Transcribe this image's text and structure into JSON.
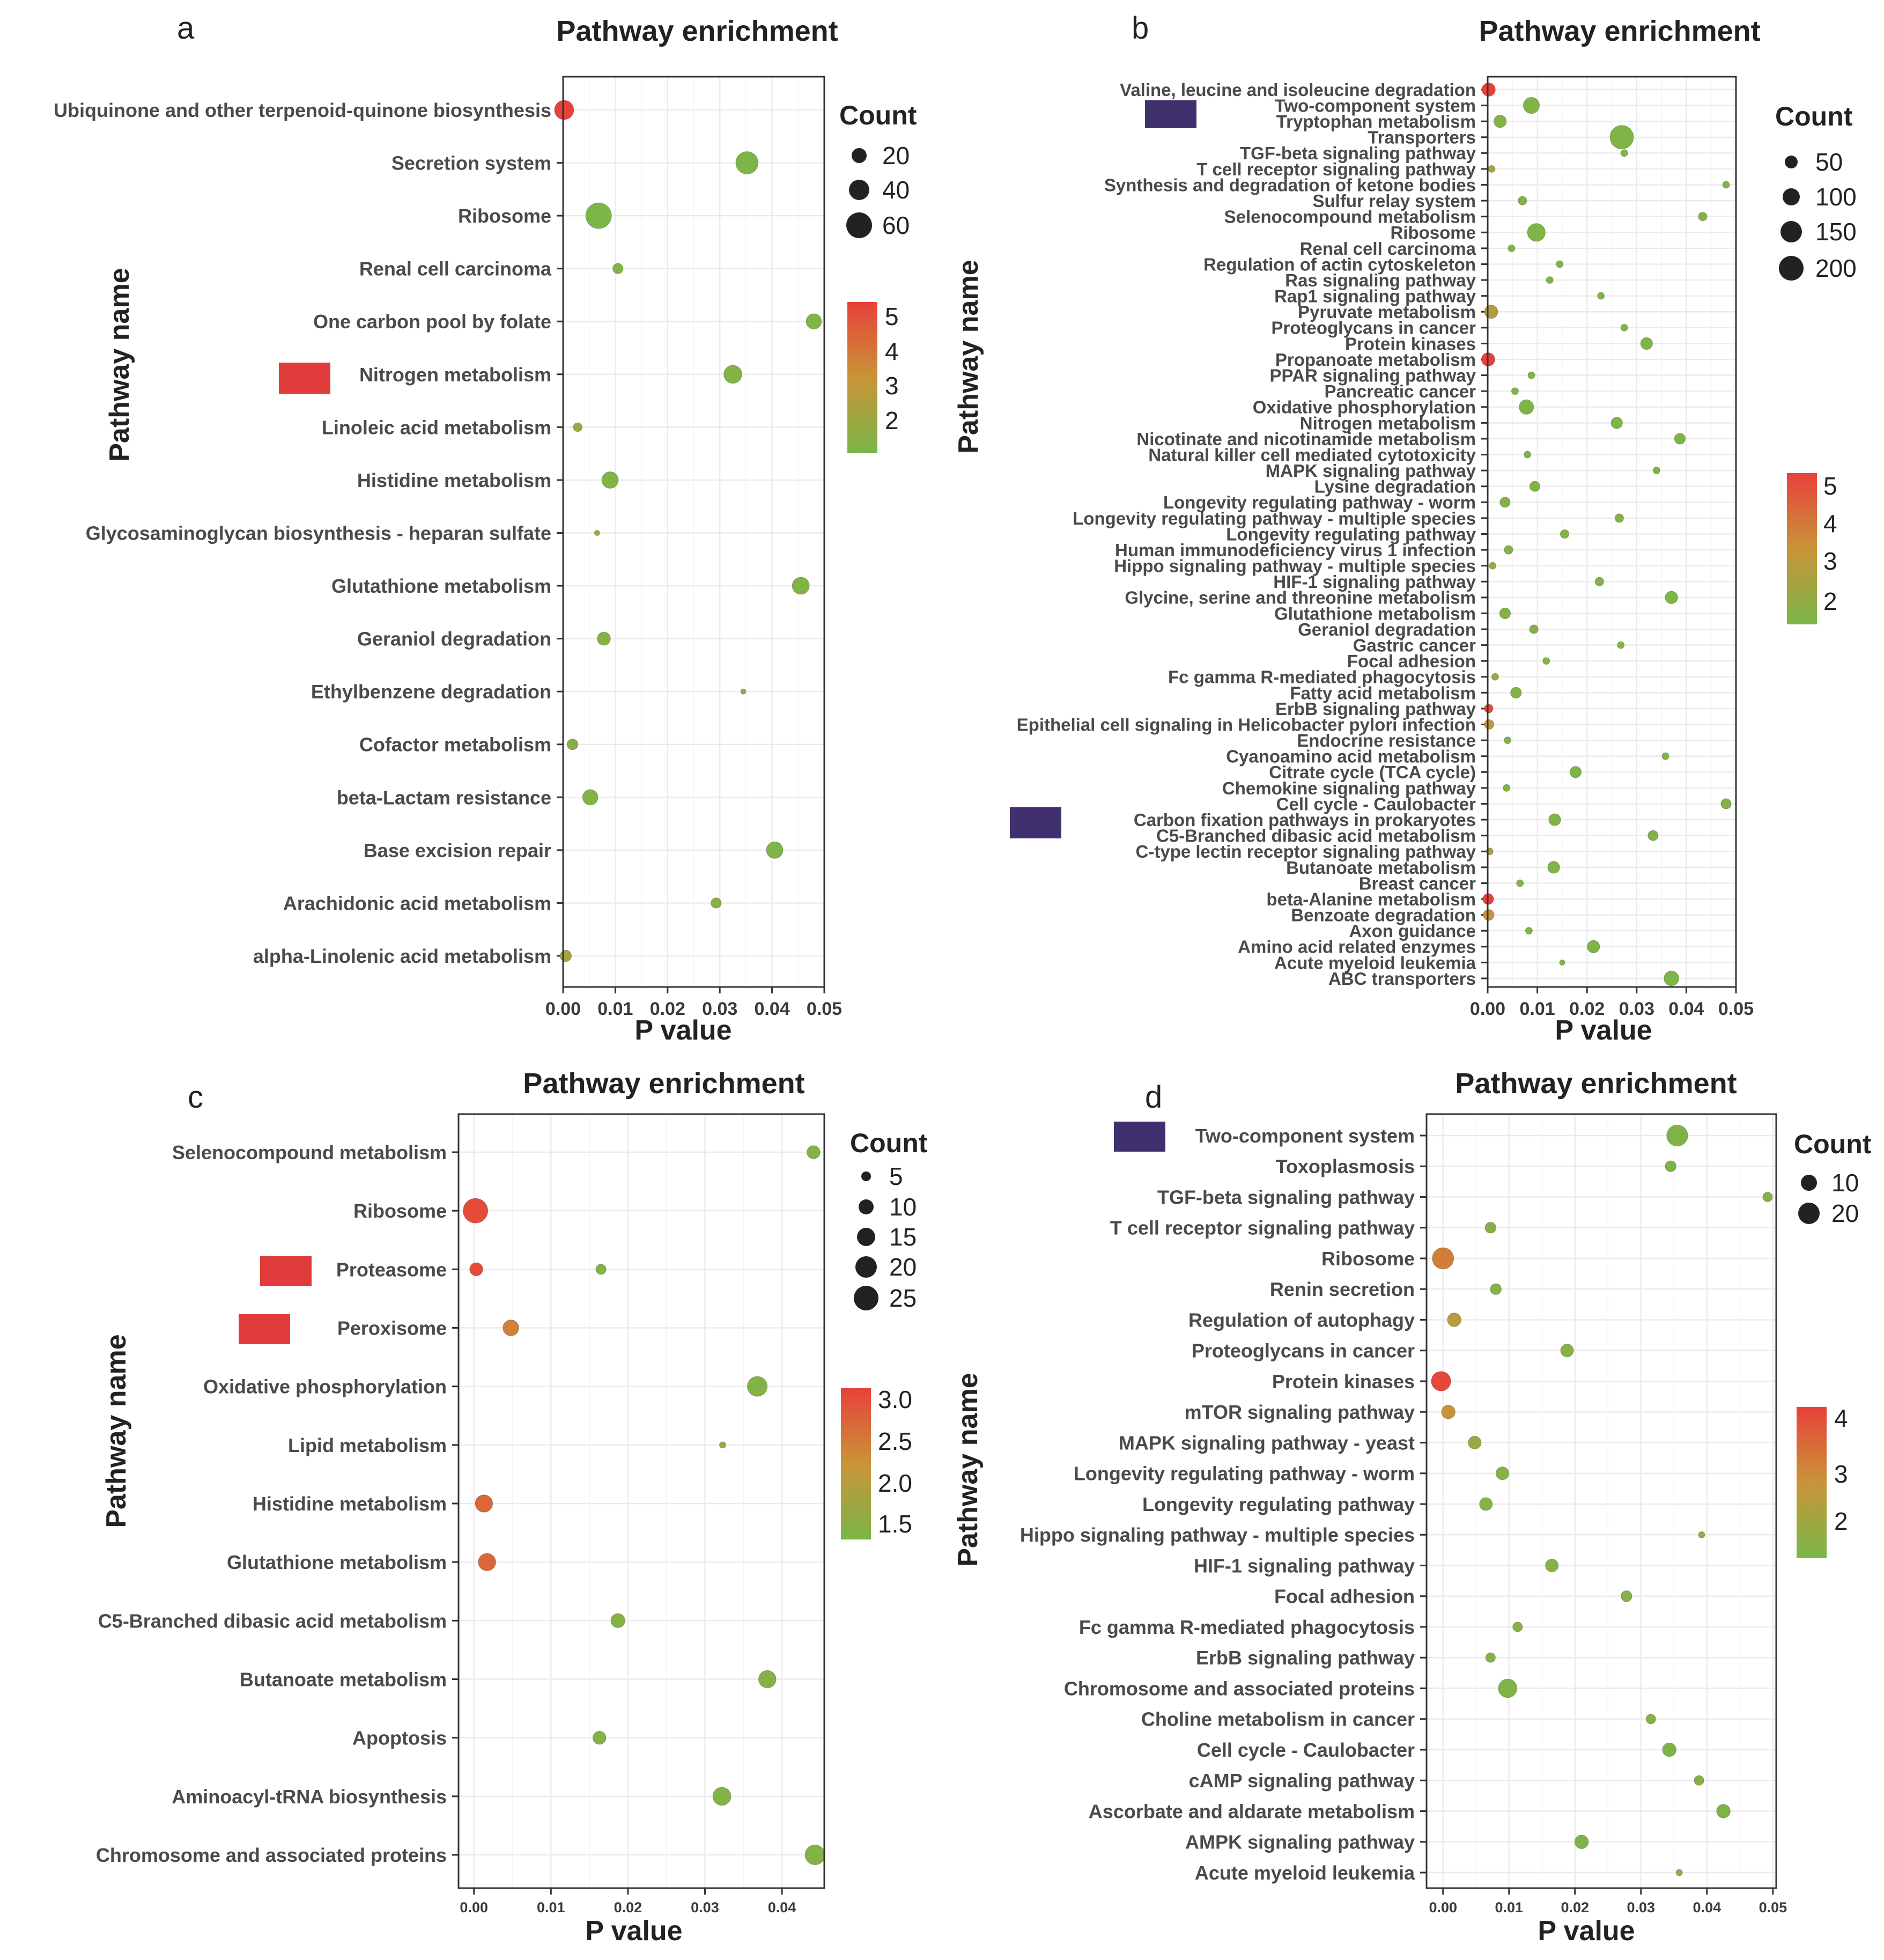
{
  "figure": {
    "panels": [
      {
        "letter": "a",
        "title": "Pathway enrichment",
        "ylabel": "Pathway name",
        "xlabel": "P value",
        "count_legend": {
          "title": "Count",
          "values": [
            20,
            40,
            60
          ]
        },
        "color_legend": {
          "ticks": [
            2,
            3,
            4,
            5
          ]
        }
      },
      {
        "letter": "b",
        "title": "Pathway enrichment",
        "ylabel": "Pathway name",
        "xlabel": "P value",
        "count_legend": {
          "title": "Count",
          "values": [
            50,
            100,
            150,
            200
          ]
        },
        "color_legend": {
          "ticks": [
            2,
            3,
            4,
            5
          ]
        }
      },
      {
        "letter": "c",
        "title": "Pathway enrichment",
        "ylabel": "Pathway name",
        "xlabel": "P value",
        "count_legend": {
          "title": "Count",
          "values": [
            5,
            10,
            15,
            20,
            25
          ]
        },
        "color_legend": {
          "ticks": [
            "1.5",
            "2.0",
            "2.5",
            "3.0"
          ]
        }
      },
      {
        "letter": "d",
        "title": "Pathway enrichment",
        "ylabel": "Pathway name",
        "xlabel": "P value",
        "count_legend": {
          "title": "Count",
          "values": [
            10,
            20
          ]
        },
        "color_legend": {
          "ticks": [
            2,
            3,
            4
          ]
        }
      }
    ]
  },
  "colors": {
    "low": "#7ab648",
    "mid": "#c99438",
    "high": "#e8413a",
    "highlight_red": "#e03b3b",
    "highlight_purple": "#40306e"
  },
  "chart_data": [
    {
      "type": "scatter",
      "panel": "a",
      "title": "Pathway enrichment",
      "xlabel": "P value",
      "ylabel": "Pathway name",
      "xlim": [
        0,
        0.05
      ],
      "xticks": [
        "0.00",
        "0.01",
        "0.02",
        "0.03",
        "0.04",
        "0.05"
      ],
      "size_legend_title": "Count",
      "highlight": {
        "Nitrogen metabolism": "red"
      },
      "points": [
        {
          "name": "Ubiquinone and other terpenoid-quinone biosynthesis",
          "p": 0.0002,
          "count": 35,
          "color": 5
        },
        {
          "name": "Secretion system",
          "p": 0.0352,
          "count": 50,
          "color": 1.7
        },
        {
          "name": "Ribosome",
          "p": 0.0068,
          "count": 70,
          "color": 1.6
        },
        {
          "name": "Renal cell carcinoma",
          "p": 0.0105,
          "count": 8,
          "color": 1.8
        },
        {
          "name": "One carbon pool by folate",
          "p": 0.048,
          "count": 20,
          "color": 1.7
        },
        {
          "name": "Nitrogen metabolism",
          "p": 0.0325,
          "count": 30,
          "color": 1.8
        },
        {
          "name": "Linoleic acid metabolism",
          "p": 0.0028,
          "count": 6,
          "color": 2.2
        },
        {
          "name": "Histidine metabolism",
          "p": 0.009,
          "count": 24,
          "color": 1.7
        },
        {
          "name": "Glycosaminoglycan biosynthesis - heparan sulfate",
          "p": 0.0065,
          "count": 4,
          "color": 1.9
        },
        {
          "name": "Glutathione metabolism",
          "p": 0.0455,
          "count": 26,
          "color": 1.7
        },
        {
          "name": "Geraniol degradation",
          "p": 0.0078,
          "count": 14,
          "color": 1.8
        },
        {
          "name": "Ethylbenzene degradation",
          "p": 0.0345,
          "count": 4,
          "color": 1.9
        },
        {
          "name": "Cofactor metabolism",
          "p": 0.0018,
          "count": 9,
          "color": 1.9
        },
        {
          "name": "beta-Lactam resistance",
          "p": 0.0052,
          "count": 20,
          "color": 1.8
        },
        {
          "name": "Base excision repair",
          "p": 0.0405,
          "count": 24,
          "color": 1.7
        },
        {
          "name": "Arachidonic acid metabolism",
          "p": 0.0293,
          "count": 8,
          "color": 1.9
        },
        {
          "name": "alpha-Linolenic acid metabolism",
          "p": 0.0005,
          "count": 10,
          "color": 2.6
        }
      ]
    },
    {
      "type": "scatter",
      "panel": "b",
      "title": "Pathway enrichment",
      "xlabel": "P value",
      "ylabel": "Pathway name",
      "xlim": [
        0,
        0.05
      ],
      "xticks": [
        "0.00",
        "0.01",
        "0.02",
        "0.03",
        "0.04",
        "0.05"
      ],
      "size_legend_title": "Count",
      "highlight": {
        "Two-component system": "purple",
        "Carbon fixation pathways in prokaryotes": "purple"
      },
      "points": [
        {
          "name": "Valine, leucine and isoleucine degradation",
          "p": 0.0002,
          "count": 60,
          "color": 5
        },
        {
          "name": "Two-component system",
          "p": 0.0088,
          "count": 100,
          "color": 1.7
        },
        {
          "name": "Tryptophan metabolism",
          "p": 0.0025,
          "count": 50,
          "color": 1.8
        },
        {
          "name": "Transporters",
          "p": 0.027,
          "count": 260,
          "color": 1.7
        },
        {
          "name": "TGF-beta signaling pathway",
          "p": 0.0275,
          "count": 14,
          "color": 1.8
        },
        {
          "name": "T cell receptor signaling pathway",
          "p": 0.0008,
          "count": 14,
          "color": 2.6
        },
        {
          "name": "Synthesis and degradation of ketone bodies",
          "p": 0.048,
          "count": 14,
          "color": 1.8
        },
        {
          "name": "Sulfur relay system",
          "p": 0.007,
          "count": 20,
          "color": 1.8
        },
        {
          "name": "Selenocompound metabolism",
          "p": 0.0433,
          "count": 20,
          "color": 1.8
        },
        {
          "name": "Ribosome",
          "p": 0.0098,
          "count": 130,
          "color": 1.7
        },
        {
          "name": "Renal cell carcinoma",
          "p": 0.0048,
          "count": 14,
          "color": 1.8
        },
        {
          "name": "Regulation of actin cytoskeleton",
          "p": 0.0145,
          "count": 14,
          "color": 1.8
        },
        {
          "name": "Ras signaling pathway",
          "p": 0.0125,
          "count": 14,
          "color": 1.8
        },
        {
          "name": "Rap1 signaling pathway",
          "p": 0.0228,
          "count": 14,
          "color": 1.8
        },
        {
          "name": "Pyruvate metabolism",
          "p": 0.0007,
          "count": 60,
          "color": 2.8
        },
        {
          "name": "Proteoglycans in cancer",
          "p": 0.0275,
          "count": 14,
          "color": 1.8
        },
        {
          "name": "Protein kinases",
          "p": 0.032,
          "count": 45,
          "color": 1.7
        },
        {
          "name": "Propanoate metabolism",
          "p": 0.0001,
          "count": 60,
          "color": 5
        },
        {
          "name": "PPAR signaling pathway",
          "p": 0.0088,
          "count": 14,
          "color": 1.8
        },
        {
          "name": "Pancreatic cancer",
          "p": 0.0055,
          "count": 14,
          "color": 1.8
        },
        {
          "name": "Oxidative phosphorylation",
          "p": 0.0078,
          "count": 75,
          "color": 1.7
        },
        {
          "name": "Nitrogen metabolism",
          "p": 0.026,
          "count": 40,
          "color": 1.7
        },
        {
          "name": "Nicotinate and nicotinamide metabolism",
          "p": 0.0387,
          "count": 35,
          "color": 1.7
        },
        {
          "name": "Natural killer cell mediated cytotoxicity",
          "p": 0.008,
          "count": 14,
          "color": 1.8
        },
        {
          "name": "MAPK signaling pathway",
          "p": 0.034,
          "count": 14,
          "color": 1.8
        },
        {
          "name": "Lysine degradation",
          "p": 0.0095,
          "count": 30,
          "color": 1.8
        },
        {
          "name": "Longevity regulating pathway - worm",
          "p": 0.0035,
          "count": 30,
          "color": 1.8
        },
        {
          "name": "Longevity regulating pathway - multiple species",
          "p": 0.0265,
          "count": 20,
          "color": 1.8
        },
        {
          "name": "Longevity regulating pathway",
          "p": 0.0155,
          "count": 20,
          "color": 1.8
        },
        {
          "name": "Human immunodeficiency virus 1 infection",
          "p": 0.0042,
          "count": 20,
          "color": 1.8
        },
        {
          "name": "Hippo signaling pathway - multiple species",
          "p": 0.001,
          "count": 14,
          "color": 2.5
        },
        {
          "name": "HIF-1 signaling pathway",
          "p": 0.0225,
          "count": 20,
          "color": 1.8
        },
        {
          "name": "Glycine, serine and threonine metabolism",
          "p": 0.037,
          "count": 50,
          "color": 1.7
        },
        {
          "name": "Glutathione metabolism",
          "p": 0.0035,
          "count": 35,
          "color": 1.8
        },
        {
          "name": "Geraniol degradation",
          "p": 0.0093,
          "count": 20,
          "color": 1.8
        },
        {
          "name": "Gastric cancer",
          "p": 0.0268,
          "count": 14,
          "color": 1.8
        },
        {
          "name": "Focal adhesion",
          "p": 0.0118,
          "count": 14,
          "color": 1.8
        },
        {
          "name": "Fc gamma R-mediated phagocytosis",
          "p": 0.0015,
          "count": 14,
          "color": 2.2
        },
        {
          "name": "Fatty acid metabolism",
          "p": 0.0057,
          "count": 35,
          "color": 1.8
        },
        {
          "name": "ErbB signaling pathway",
          "p": 0.0002,
          "count": 20,
          "color": 4.8
        },
        {
          "name": "Epithelial cell signaling in Helicobacter pylori infection",
          "p": 0.0003,
          "count": 25,
          "color": 3.2
        },
        {
          "name": "Endocrine resistance",
          "p": 0.004,
          "count": 14,
          "color": 1.8
        },
        {
          "name": "Cyanoamino acid metabolism",
          "p": 0.0358,
          "count": 14,
          "color": 1.8
        },
        {
          "name": "Citrate cycle (TCA cycle)",
          "p": 0.0177,
          "count": 40,
          "color": 1.7
        },
        {
          "name": "Chemokine signaling pathway",
          "p": 0.0038,
          "count": 14,
          "color": 1.8
        },
        {
          "name": "Cell cycle - Caulobacter",
          "p": 0.048,
          "count": 30,
          "color": 1.8
        },
        {
          "name": "Carbon fixation pathways in prokaryotes",
          "p": 0.0135,
          "count": 45,
          "color": 1.7
        },
        {
          "name": "C5-Branched dibasic acid metabolism",
          "p": 0.0333,
          "count": 30,
          "color": 1.8
        },
        {
          "name": "C-type lectin receptor signaling pathway",
          "p": 0.0004,
          "count": 14,
          "color": 2.6
        },
        {
          "name": "Butanoate metabolism",
          "p": 0.0133,
          "count": 45,
          "color": 1.7
        },
        {
          "name": "Breast cancer",
          "p": 0.0065,
          "count": 14,
          "color": 1.8
        },
        {
          "name": "beta-Alanine metabolism",
          "p": 0.0001,
          "count": 35,
          "color": 5
        },
        {
          "name": "Benzoate degradation",
          "p": 0.0002,
          "count": 35,
          "color": 3.3
        },
        {
          "name": "Axon guidance",
          "p": 0.0083,
          "count": 14,
          "color": 1.8
        },
        {
          "name": "Amino acid related enzymes",
          "p": 0.0213,
          "count": 50,
          "color": 1.7
        },
        {
          "name": "Acute myeloid leukemia",
          "p": 0.015,
          "count": 12,
          "color": 1.8
        },
        {
          "name": "ABC transporters",
          "p": 0.037,
          "count": 80,
          "color": 1.7
        }
      ]
    },
    {
      "type": "scatter",
      "panel": "c",
      "title": "Pathway enrichment",
      "xlabel": "P value",
      "ylabel": "Pathway name",
      "xlim": [
        -0.002,
        0.0455
      ],
      "xticks": [
        "0.00",
        "0.01",
        "0.02",
        "0.03",
        "0.04"
      ],
      "size_legend_title": "Count",
      "highlight": {
        "Proteasome": "red",
        "Peroxisome": "red"
      },
      "points": [
        {
          "name": "Selenocompound metabolism",
          "p": 0.0441,
          "count": 6,
          "color": 1.4
        },
        {
          "name": "Ribosome",
          "p": 0.0002,
          "count": 25,
          "color": 3.0
        },
        {
          "name": "Proteasome",
          "p": 0.0003,
          "count": 6,
          "color": 3.0
        },
        {
          "name": "Proteasome",
          "p": 0.0165,
          "count": 4,
          "color": 1.4
        },
        {
          "name": "Peroxisome",
          "p": 0.0048,
          "count": 9,
          "color": 2.4
        },
        {
          "name": "Oxidative phosphorylation",
          "p": 0.0368,
          "count": 15,
          "color": 1.4
        },
        {
          "name": "Lipid metabolism",
          "p": 0.0323,
          "count": 3,
          "color": 1.5
        },
        {
          "name": "Histidine metabolism",
          "p": 0.0013,
          "count": 11,
          "color": 2.7
        },
        {
          "name": "Glutathione metabolism",
          "p": 0.0017,
          "count": 11,
          "color": 2.7
        },
        {
          "name": "C5-Branched dibasic acid metabolism",
          "p": 0.0187,
          "count": 7,
          "color": 1.4
        },
        {
          "name": "Butanoate metabolism",
          "p": 0.0381,
          "count": 11,
          "color": 1.4
        },
        {
          "name": "Apoptosis",
          "p": 0.0163,
          "count": 6,
          "color": 1.4
        },
        {
          "name": "Aminoacyl-tRNA biosynthesis",
          "p": 0.0322,
          "count": 12,
          "color": 1.4
        },
        {
          "name": "Chromosome and associated proteins",
          "p": 0.0443,
          "count": 15,
          "color": 1.4
        }
      ]
    },
    {
      "type": "scatter",
      "panel": "d",
      "title": "Pathway enrichment",
      "xlabel": "P value",
      "ylabel": "Pathway name",
      "xlim": [
        -0.0025,
        0.0505
      ],
      "xticks": [
        "0.00",
        "0.01",
        "0.02",
        "0.03",
        "0.04",
        "0.05"
      ],
      "size_legend_title": "Count",
      "highlight": {
        "Two-component system": "purple"
      },
      "points": [
        {
          "name": "Two-component system",
          "p": 0.0355,
          "count": 24,
          "color": 1.6
        },
        {
          "name": "Toxoplasmosis",
          "p": 0.0345,
          "count": 6,
          "color": 1.6
        },
        {
          "name": "TGF-beta signaling pathway",
          "p": 0.0492,
          "count": 5,
          "color": 1.7
        },
        {
          "name": "T cell receptor signaling pathway",
          "p": 0.0072,
          "count": 6,
          "color": 1.7
        },
        {
          "name": "Ribosome",
          "p": 0.0,
          "count": 25,
          "color": 3.2
        },
        {
          "name": "Renin secretion",
          "p": 0.008,
          "count": 6,
          "color": 1.7
        },
        {
          "name": "Regulation of autophagy",
          "p": 0.0017,
          "count": 9,
          "color": 2.6
        },
        {
          "name": "Proteoglycans in cancer",
          "p": 0.0188,
          "count": 8,
          "color": 1.7
        },
        {
          "name": "Protein kinases",
          "p": -0.0003,
          "count": 20,
          "color": 4.1
        },
        {
          "name": "mTOR signaling pathway",
          "p": 0.0008,
          "count": 9,
          "color": 2.8
        },
        {
          "name": "MAPK signaling pathway - yeast",
          "p": 0.0048,
          "count": 8,
          "color": 2.0
        },
        {
          "name": "Longevity regulating pathway - worm",
          "p": 0.009,
          "count": 8,
          "color": 1.7
        },
        {
          "name": "Longevity regulating pathway",
          "p": 0.0065,
          "count": 8,
          "color": 1.7
        },
        {
          "name": "Hippo signaling pathway - multiple species",
          "p": 0.0392,
          "count": 4,
          "color": 1.8
        },
        {
          "name": "HIF-1 signaling pathway",
          "p": 0.0165,
          "count": 8,
          "color": 1.7
        },
        {
          "name": "Focal adhesion",
          "p": 0.0278,
          "count": 6,
          "color": 1.7
        },
        {
          "name": "Fc gamma R-mediated phagocytosis",
          "p": 0.0113,
          "count": 5,
          "color": 1.7
        },
        {
          "name": "ErbB signaling pathway",
          "p": 0.0072,
          "count": 5,
          "color": 1.7
        },
        {
          "name": "Chromosome and associated proteins",
          "p": 0.0098,
          "count": 18,
          "color": 1.6
        },
        {
          "name": "Choline metabolism in cancer",
          "p": 0.0315,
          "count": 5,
          "color": 1.7
        },
        {
          "name": "Cell cycle - Caulobacter",
          "p": 0.0343,
          "count": 9,
          "color": 1.6
        },
        {
          "name": "cAMP signaling pathway",
          "p": 0.0388,
          "count": 5,
          "color": 1.7
        },
        {
          "name": "Ascorbate and aldarate metabolism",
          "p": 0.0425,
          "count": 9,
          "color": 1.6
        },
        {
          "name": "AMPK signaling pathway",
          "p": 0.021,
          "count": 9,
          "color": 1.6
        },
        {
          "name": "Acute myeloid leukemia",
          "p": 0.0358,
          "count": 4,
          "color": 1.9
        }
      ]
    }
  ]
}
